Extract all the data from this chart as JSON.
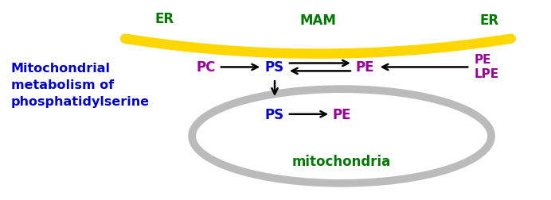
{
  "bg_color": "#ffffff",
  "title_text": "Mitochondrial\nmetabolism of\nphosphatidylserine",
  "title_color": "#0000cc",
  "title_fontsize": 11.5,
  "mam_label": "MAM",
  "mam_color": "#007700",
  "mam_fontsize": 12,
  "er_left_label": "ER",
  "er_right_label": "ER",
  "er_color": "#007700",
  "er_fontsize": 12,
  "membrane_color": "#FFD700",
  "membrane_linewidth": 9,
  "mito_ellipse_color": "#bbbbbb",
  "mito_ellipse_linewidth": 7,
  "mito_label": "mitochondria",
  "mito_label_color": "#007700",
  "mito_fontsize": 12,
  "pc_color": "#990099",
  "ps_color": "#0000cc",
  "pe_color": "#990099",
  "lpe_color": "#990099",
  "mol_fontsize": 12,
  "arrow_lw": 1.8,
  "arrow_ms": 13
}
